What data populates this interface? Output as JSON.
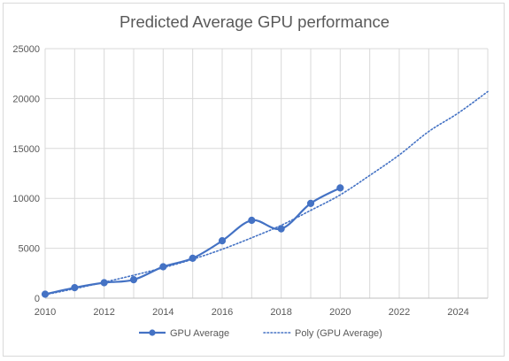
{
  "chart_data": {
    "type": "line",
    "title": "Predicted Average GPU performance",
    "xlabel": "",
    "ylabel": "",
    "xlim": [
      2010,
      2025
    ],
    "ylim": [
      0,
      25000
    ],
    "x_ticks": [
      2010,
      2012,
      2014,
      2016,
      2018,
      2020,
      2022,
      2024
    ],
    "y_ticks": [
      0,
      5000,
      10000,
      15000,
      20000,
      25000
    ],
    "grid": "vertical and horizontal",
    "legend_position": "bottom",
    "series": [
      {
        "name": "GPU Average",
        "style": "solid-line-with-markers",
        "color": "#4472C4",
        "x": [
          2010,
          2011,
          2012,
          2013,
          2014,
          2015,
          2016,
          2017,
          2018,
          2019,
          2020
        ],
        "values": [
          400,
          1050,
          1550,
          1850,
          3150,
          4000,
          5750,
          7800,
          6950,
          9500,
          11050
        ]
      },
      {
        "name": "Poly (GPU Average)",
        "style": "dotted-trendline",
        "color": "#4472C4",
        "x": [
          2010,
          2011,
          2012,
          2013,
          2014,
          2015,
          2016,
          2017,
          2018,
          2019,
          2020,
          2021,
          2022,
          2023,
          2024,
          2025
        ],
        "values": [
          350,
          950,
          1600,
          2300,
          3050,
          3900,
          4900,
          6050,
          7300,
          8800,
          10350,
          12300,
          14350,
          16700,
          18550,
          20700
        ]
      }
    ]
  }
}
